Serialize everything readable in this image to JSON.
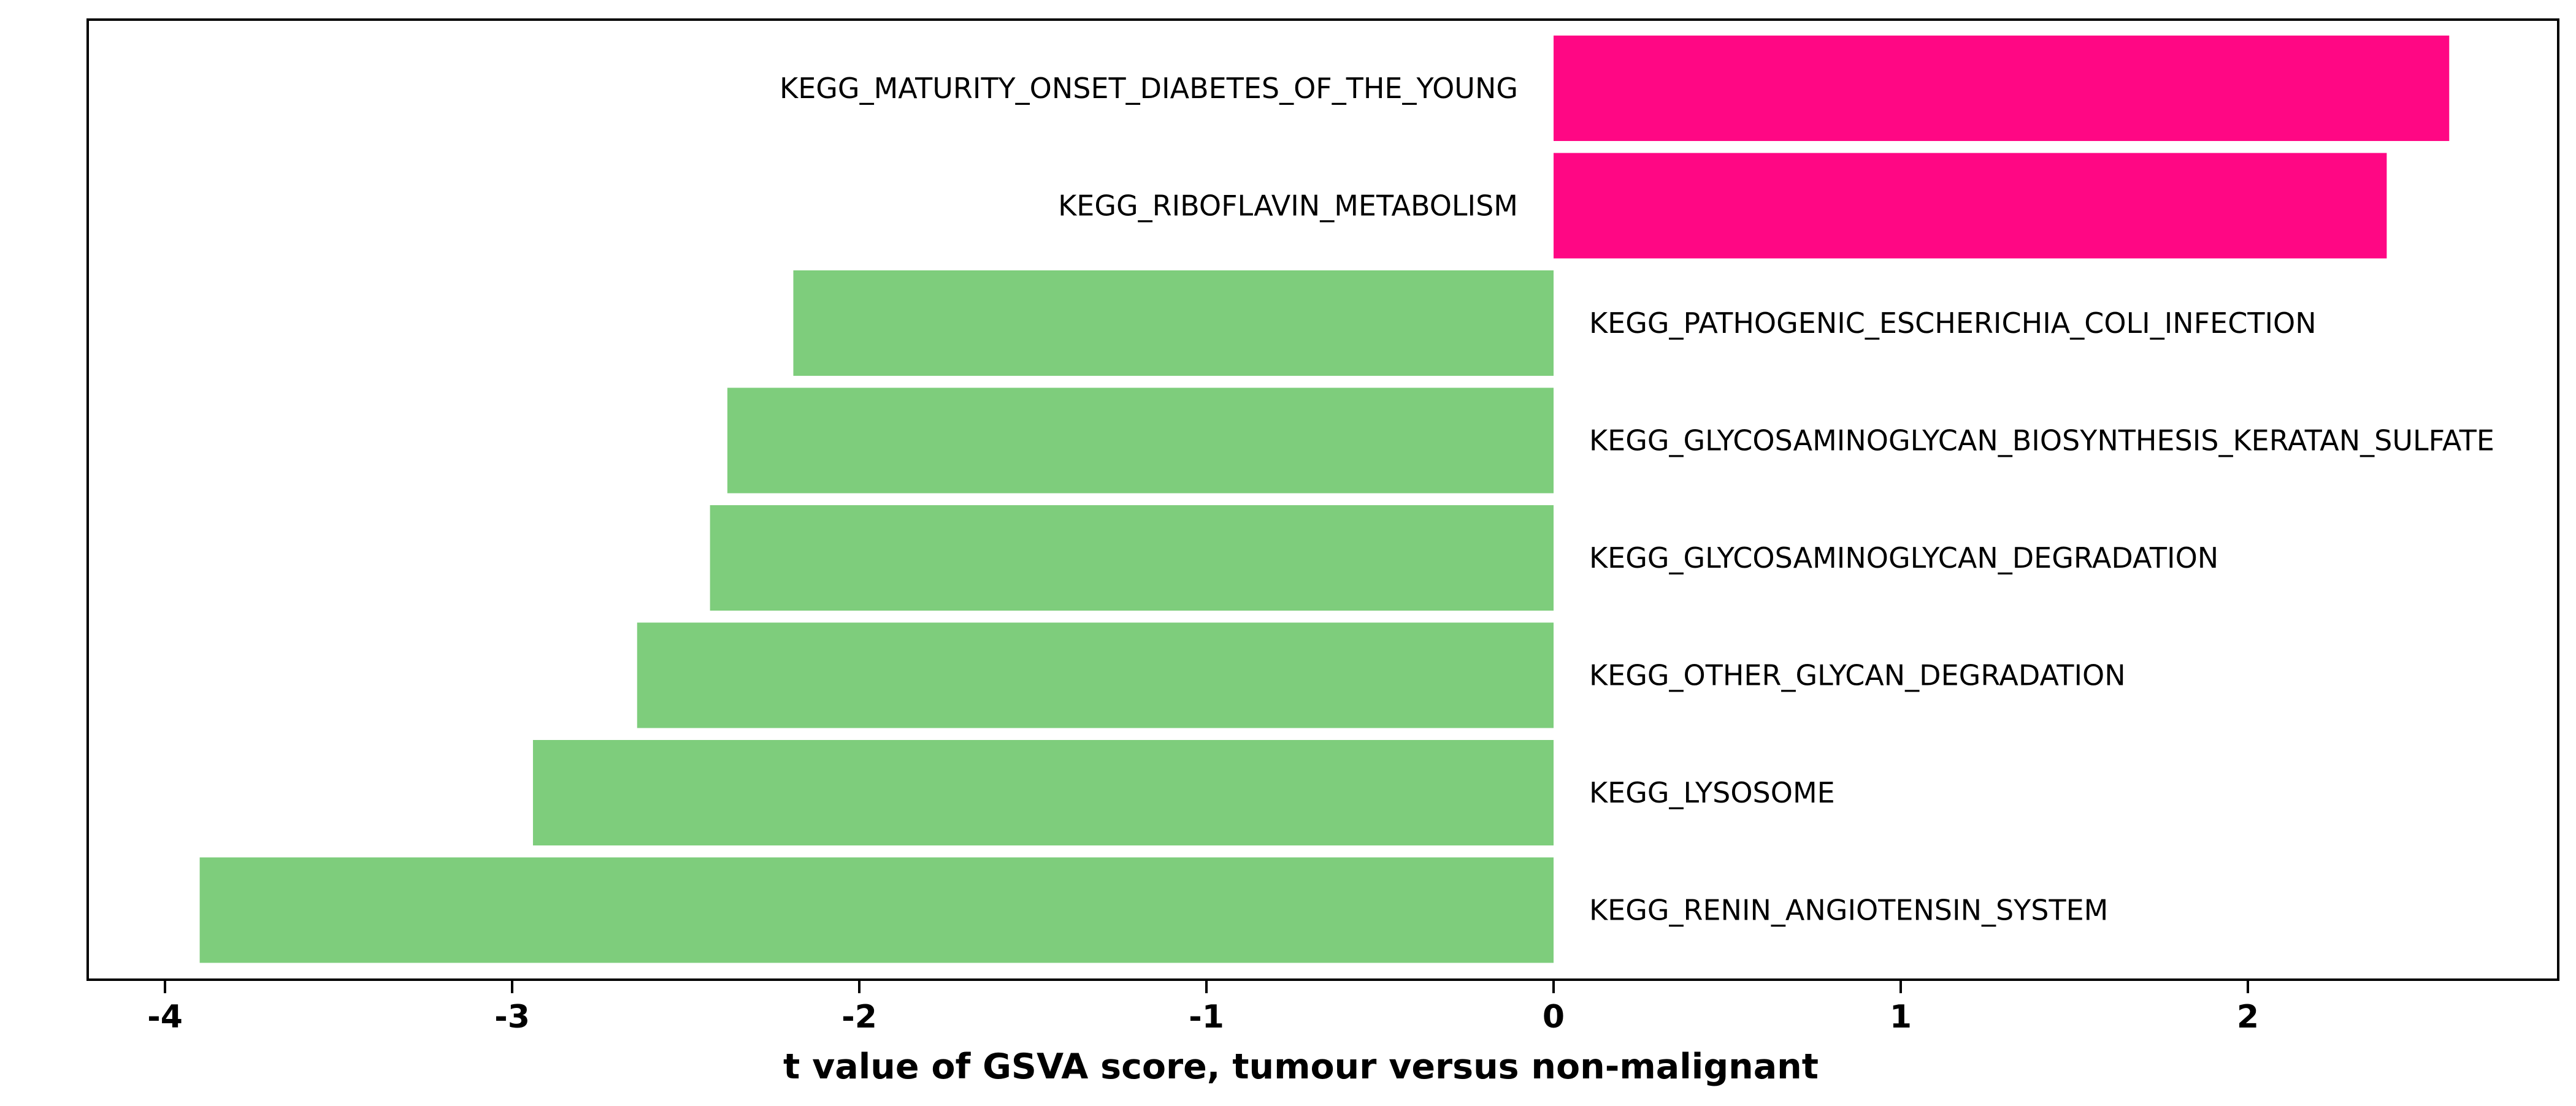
{
  "chart_data": {
    "type": "bar",
    "orientation": "horizontal",
    "title": "",
    "xlabel": "t value of GSVA score, tumour versus non-malignant",
    "ylabel": "",
    "xlim": [
      -4.2,
      2.9
    ],
    "xticks": [
      -4,
      -3,
      -2,
      -1,
      0,
      1,
      2
    ],
    "grid": false,
    "legend": "none",
    "categories": [
      "KEGG_MATURITY_ONSET_DIABETES_OF_THE_YOUNG",
      "KEGG_RIBOFLAVIN_METABOLISM",
      "KEGG_PATHOGENIC_ESCHERICHIA_COLI_INFECTION",
      "KEGG_GLYCOSAMINOGLYCAN_BIOSYNTHESIS_KERATAN_SULFATE",
      "KEGG_GLYCOSAMINOGLYCAN_DEGRADATION",
      "KEGG_OTHER_GLYCAN_DEGRADATION",
      "KEGG_LYSOSOME",
      "KEGG_RENIN_ANGIOTENSIN_SYSTEM"
    ],
    "values": [
      2.58,
      2.4,
      -2.19,
      -2.38,
      -2.43,
      -2.64,
      -2.94,
      -3.9
    ],
    "colors": {
      "positive": "#ff0784",
      "negative": "#7ecd7c"
    }
  }
}
